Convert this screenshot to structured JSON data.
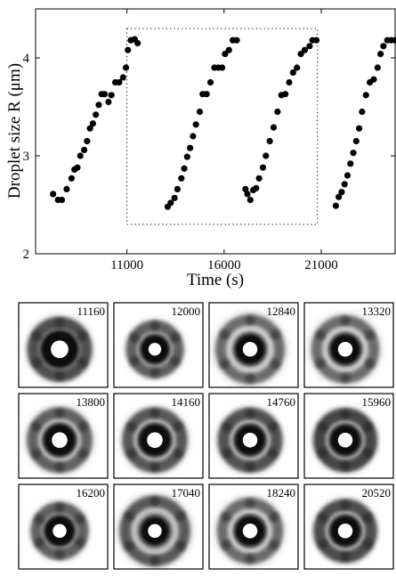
{
  "chart_data": {
    "type": "scatter",
    "xlabel": "Time (s)",
    "ylabel": "Droplet size R (μm)",
    "xlim": [
      6300,
      24800
    ],
    "ylim": [
      2,
      4.5
    ],
    "xticks": [
      11000,
      16000,
      21000
    ],
    "yticks": [
      2,
      3,
      4
    ],
    "grid": false,
    "series": [
      {
        "values": [
          [
            7200,
            2.61
          ],
          [
            7450,
            2.55
          ],
          [
            7650,
            2.55
          ],
          [
            7900,
            2.66
          ],
          [
            8150,
            2.77
          ],
          [
            8300,
            2.86
          ],
          [
            8450,
            2.88
          ],
          [
            8600,
            3.0
          ],
          [
            8800,
            3.06
          ],
          [
            8950,
            3.15
          ],
          [
            9100,
            3.28
          ],
          [
            9250,
            3.33
          ],
          [
            9400,
            3.42
          ],
          [
            9550,
            3.52
          ],
          [
            9700,
            3.63
          ],
          [
            9850,
            3.63
          ],
          [
            10050,
            3.55
          ],
          [
            10200,
            3.62
          ],
          [
            10400,
            3.75
          ],
          [
            10600,
            3.75
          ],
          [
            10800,
            3.8
          ],
          [
            10950,
            3.9
          ],
          [
            11050,
            4.08
          ],
          [
            11200,
            4.18
          ],
          [
            11400,
            4.19
          ],
          [
            11550,
            4.15
          ],
          [
            13100,
            2.48
          ],
          [
            13250,
            2.52
          ],
          [
            13450,
            2.57
          ],
          [
            13600,
            2.66
          ],
          [
            13800,
            2.77
          ],
          [
            13950,
            2.87
          ],
          [
            14100,
            2.99
          ],
          [
            14250,
            3.08
          ],
          [
            14400,
            3.2
          ],
          [
            14550,
            3.32
          ],
          [
            14750,
            3.45
          ],
          [
            14900,
            3.63
          ],
          [
            15100,
            3.63
          ],
          [
            15300,
            3.75
          ],
          [
            15500,
            3.9
          ],
          [
            15700,
            3.9
          ],
          [
            15900,
            3.9
          ],
          [
            16050,
            4.04
          ],
          [
            16250,
            4.08
          ],
          [
            16450,
            4.18
          ],
          [
            16650,
            4.18
          ],
          [
            17100,
            2.66
          ],
          [
            17200,
            2.61
          ],
          [
            17350,
            2.55
          ],
          [
            17500,
            2.65
          ],
          [
            17650,
            2.67
          ],
          [
            17800,
            2.77
          ],
          [
            18000,
            2.88
          ],
          [
            18150,
            3.0
          ],
          [
            18350,
            3.15
          ],
          [
            18550,
            3.29
          ],
          [
            18750,
            3.45
          ],
          [
            18950,
            3.62
          ],
          [
            19150,
            3.63
          ],
          [
            19350,
            3.75
          ],
          [
            19550,
            3.85
          ],
          [
            19750,
            3.9
          ],
          [
            19950,
            4.04
          ],
          [
            20150,
            4.08
          ],
          [
            20400,
            4.12
          ],
          [
            20550,
            4.18
          ],
          [
            20750,
            4.18
          ],
          [
            21750,
            2.49
          ],
          [
            21900,
            2.58
          ],
          [
            22050,
            2.63
          ],
          [
            22200,
            2.71
          ],
          [
            22350,
            2.8
          ],
          [
            22500,
            2.92
          ],
          [
            22650,
            3.03
          ],
          [
            22800,
            3.15
          ],
          [
            22950,
            3.28
          ],
          [
            23100,
            3.45
          ],
          [
            23300,
            3.62
          ],
          [
            23500,
            3.75
          ],
          [
            23700,
            3.78
          ],
          [
            23900,
            3.9
          ],
          [
            24050,
            4.04
          ],
          [
            24200,
            4.12
          ],
          [
            24400,
            4.18
          ],
          [
            24600,
            4.18
          ],
          [
            24800,
            4.18
          ]
        ]
      }
    ],
    "annotations": [
      {
        "type": "dotted-rectangle",
        "x": [
          11000,
          20800
        ],
        "y": [
          2.3,
          4.3
        ]
      }
    ]
  },
  "panels": [
    {
      "label": "11160",
      "ring": 0.55,
      "darkness": 0.7,
      "spot": 0.18,
      "spotBlack": 0.22
    },
    {
      "label": "12000",
      "ring": 0.3,
      "darkness": 0.55,
      "spot": 0.13,
      "spotBlack": 0.17
    },
    {
      "label": "12840",
      "ring": 0.78,
      "darkness": 0.45,
      "spot": 0.15,
      "spotBlack": 0.18
    },
    {
      "label": "13320",
      "ring": 0.72,
      "darkness": 0.45,
      "spot": 0.15,
      "spotBlack": 0.18
    },
    {
      "label": "13800",
      "ring": 0.6,
      "darkness": 0.55,
      "spot": 0.16,
      "spotBlack": 0.19
    },
    {
      "label": "14160",
      "ring": 0.58,
      "darkness": 0.62,
      "spot": 0.16,
      "spotBlack": 0.19
    },
    {
      "label": "14760",
      "ring": 0.55,
      "darkness": 0.68,
      "spot": 0.15,
      "spotBlack": 0.18
    },
    {
      "label": "15960",
      "ring": 0.5,
      "darkness": 0.78,
      "spot": 0.15,
      "spotBlack": 0.18
    },
    {
      "label": "16200",
      "ring": 0.3,
      "darkness": 0.55,
      "spot": 0.14,
      "spotBlack": 0.18
    },
    {
      "label": "17040",
      "ring": 0.8,
      "darkness": 0.6,
      "spot": 0.14,
      "spotBlack": 0.17
    },
    {
      "label": "18240",
      "ring": 0.65,
      "darkness": 0.45,
      "spot": 0.15,
      "spotBlack": 0.18
    },
    {
      "label": "20520",
      "ring": 0.5,
      "darkness": 0.72,
      "spot": 0.15,
      "spotBlack": 0.18
    }
  ]
}
